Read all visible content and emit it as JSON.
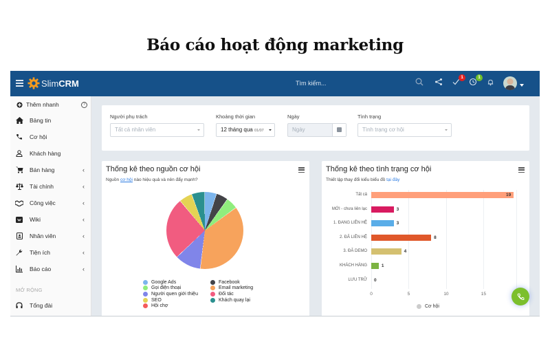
{
  "page_heading": "Báo cáo hoạt động marketing",
  "topbar": {
    "brand_light": "Slim",
    "brand_bold": "CRM",
    "search_placeholder": "Tìm kiếm...",
    "icons": [
      "search-icon",
      "share-icon",
      "task-check-icon",
      "clock-icon",
      "bell-icon"
    ],
    "task_badge": "1",
    "task_badge_color": "#e02020",
    "clock_badge": "1",
    "clock_badge_color": "#6fbf2a"
  },
  "sidebar": {
    "quick_add": "Thêm nhanh",
    "items": [
      {
        "label": "Bảng tin",
        "icon": "home-icon",
        "has_submenu": false
      },
      {
        "label": "Cơ hội",
        "icon": "phone-icon",
        "has_submenu": false
      },
      {
        "label": "Khách hàng",
        "icon": "user-icon",
        "has_submenu": false
      },
      {
        "label": "Bán hàng",
        "icon": "cart-icon",
        "has_submenu": true
      },
      {
        "label": "Tài chính",
        "icon": "scale-icon",
        "has_submenu": true
      },
      {
        "label": "Công việc",
        "icon": "handshake-icon",
        "has_submenu": true
      },
      {
        "label": "Wiki",
        "icon": "wiki-icon",
        "has_submenu": true
      },
      {
        "label": "Nhân viên",
        "icon": "id-card-icon",
        "has_submenu": true
      },
      {
        "label": "Tiện ích",
        "icon": "wrench-icon",
        "has_submenu": true
      },
      {
        "label": "Báo cáo",
        "icon": "report-chart-icon",
        "has_submenu": true
      }
    ],
    "section_label": "MỞ RỘNG",
    "extra_items": [
      {
        "label": "Tổng đài",
        "icon": "headphones-icon"
      }
    ],
    "chevron": "‹"
  },
  "filters": {
    "owner": {
      "label": "Người phụ trách",
      "placeholder": "Tất cả nhân viên"
    },
    "period": {
      "label": "Khoảng thời gian",
      "value": "12 tháng qua",
      "value_suffix": "01/07"
    },
    "date": {
      "label": "Ngày",
      "placeholder": "Ngày"
    },
    "status": {
      "label": "Tình trạng",
      "placeholder": "Tình trạng cơ hội"
    }
  },
  "source_card": {
    "title": "Thống kê theo nguồn cơ hội",
    "subtitle_pre": "Nguồn ",
    "subtitle_link": "cơ hội",
    "subtitle_post": " nào hiệu quả và nên đẩy mạnh?"
  },
  "status_card": {
    "title": "Thống kê theo tình trạng cơ hội",
    "subtitle_pre": "Thiết lập thay đổi kiểu biểu đồ ",
    "subtitle_link": "tại đây"
  },
  "chart_data": [
    {
      "type": "pie",
      "title": "Thống kê theo nguồn cơ hội",
      "categories": [
        "Google Ads",
        "Facebook",
        "Gọi điện thoại",
        "Email marketing",
        "Người quen giới thiệu",
        "Đối tác",
        "SEO",
        "Khách quay lại",
        "Hội chợ"
      ],
      "values": [
        5,
        5,
        5,
        37,
        11,
        26,
        5.5,
        5.5,
        0
      ],
      "colors": [
        "#7cb5ec",
        "#434348",
        "#90ed7d",
        "#f7a35c",
        "#8085e9",
        "#f15c80",
        "#e4d354",
        "#2b908f",
        "#f45b5b"
      ],
      "legend_position": "bottom",
      "legend_columns": [
        [
          "Google Ads",
          "Gọi điện thoại",
          "Người quen giới thiệu",
          "SEO",
          "Hội chợ"
        ],
        [
          "Facebook",
          "Email marketing",
          "Đối tác",
          "Khách quay lại"
        ]
      ]
    },
    {
      "type": "bar",
      "orientation": "horizontal",
      "title": "Thống kê theo tình trạng cơ hội",
      "categories": [
        "Tất cả",
        "MỚI - chưa liên lạc",
        "1. ĐANG LIÊN HỆ",
        "2. ĐÃ LIÊN HỆ",
        "3. ĐÃ DEMO",
        "KHÁCH HÀNG",
        "LƯU TRỮ"
      ],
      "series": [
        {
          "name": "Cơ hội",
          "values": [
            19,
            3,
            3,
            8,
            4,
            1,
            0
          ]
        }
      ],
      "colors": [
        "#ff9f7a",
        "#d81b60",
        "#5aade8",
        "#e0582a",
        "#d4c070",
        "#7cb342",
        "#cccccc"
      ],
      "xticks": [
        0,
        5,
        10,
        15
      ],
      "xlim": [
        0,
        19
      ],
      "grid": true,
      "legend_position": "bottom"
    }
  ]
}
